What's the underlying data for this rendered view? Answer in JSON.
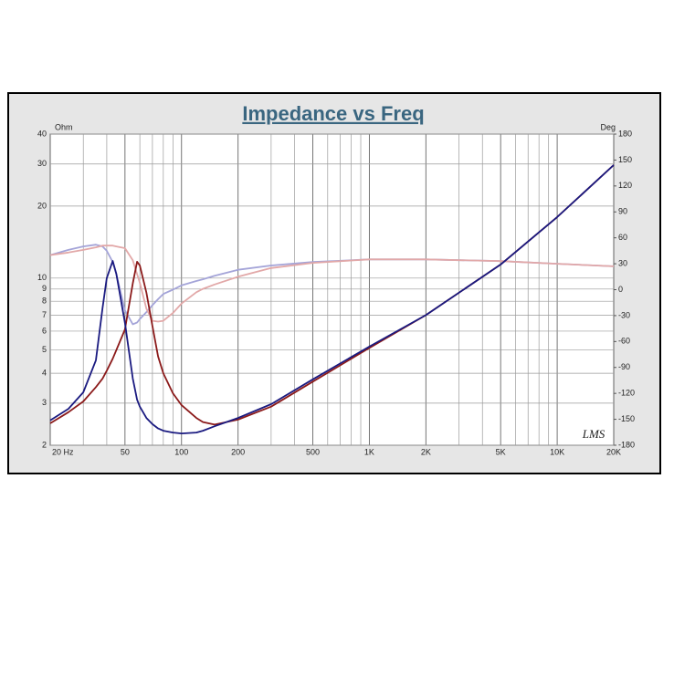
{
  "chart_data": {
    "type": "line",
    "title": "Impedance vs Freq",
    "y_label": "Ohm",
    "y2_label": "Deg",
    "annotation": "LMS",
    "x": [
      20,
      25,
      30,
      35,
      38,
      40,
      43,
      45,
      50,
      55,
      58,
      60,
      65,
      70,
      75,
      80,
      90,
      100,
      120,
      130,
      150,
      200,
      300,
      500,
      1000,
      2000,
      5000,
      10000,
      20000
    ],
    "series": [
      {
        "color": "#1a1a80",
        "values": [
          2.54,
          2.84,
          3.33,
          4.53,
          7.5,
          10.0,
          11.8,
          10.4,
          6.5,
          3.8,
          3.1,
          2.9,
          2.6,
          2.45,
          2.35,
          2.3,
          2.26,
          2.24,
          2.26,
          2.3,
          2.4,
          2.6,
          2.97,
          3.77,
          5.17,
          7.0,
          11.4,
          18.0,
          29.7
        ]
      },
      {
        "color": "#8b1a1a",
        "values": [
          2.47,
          2.75,
          3.05,
          3.5,
          3.8,
          4.1,
          4.6,
          5.0,
          6.1,
          9.5,
          11.7,
          11.3,
          8.7,
          6.3,
          4.7,
          4.0,
          3.3,
          2.94,
          2.6,
          2.5,
          2.44,
          2.56,
          2.9,
          3.69,
          5.1,
          7.0,
          11.4,
          18.0,
          29.7
        ]
      },
      {
        "color": "#a4a4d8",
        "axis": "y2",
        "values": [
          40,
          46,
          50,
          52,
          50,
          45,
          32,
          18,
          -24,
          -40,
          -38,
          -34,
          -26,
          -18,
          -11,
          -5,
          0,
          5,
          10,
          12,
          16,
          23,
          28,
          32,
          35,
          35,
          33,
          30,
          27
        ]
      },
      {
        "color": "#e2a8a8",
        "axis": "y2",
        "values": [
          40,
          43,
          46,
          49,
          51,
          51,
          51,
          50,
          48,
          34,
          18,
          8,
          -22,
          -36,
          -37,
          -36,
          -27,
          -16,
          -3,
          1,
          6,
          15,
          25,
          31,
          35,
          35,
          33,
          30,
          27
        ]
      }
    ],
    "log_x": true,
    "log_y": true,
    "grid": true,
    "xlim": [
      20,
      20000
    ],
    "xticks": [
      {
        "value": 20,
        "label": "20  Hz"
      },
      50,
      100,
      200,
      500,
      {
        "value": 1000,
        "label": "1K"
      },
      {
        "value": 2000,
        "label": "2K"
      },
      {
        "value": 5000,
        "label": "5K"
      },
      {
        "value": 10000,
        "label": "10K"
      },
      {
        "value": 20000,
        "label": "20K"
      }
    ],
    "xminor": [
      30,
      40,
      60,
      70,
      80,
      90,
      300,
      400,
      600,
      700,
      800,
      900,
      3000,
      4000,
      6000,
      7000,
      8000,
      9000
    ],
    "ylim": [
      2,
      40
    ],
    "yticks": [
      2,
      3,
      4,
      5,
      6,
      7,
      8,
      9,
      10,
      20,
      30,
      40
    ],
    "y2lim": [
      -180,
      180
    ],
    "y2ticks": [
      -180,
      -150,
      -120,
      -90,
      -60,
      -30,
      0,
      30,
      60,
      90,
      120,
      150,
      180
    ]
  }
}
